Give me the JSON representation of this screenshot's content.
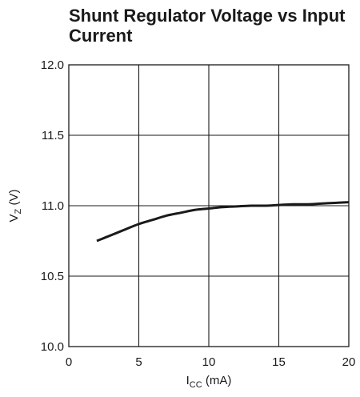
{
  "chart_data": {
    "type": "line",
    "title": "Shunt Regulator Voltage vs Input Current",
    "xlabel": {
      "main": "I",
      "sub": "CC",
      "unit": " (mA)"
    },
    "ylabel": {
      "main": "V",
      "sub": "Z",
      "unit": " (V)"
    },
    "xlim": [
      0,
      20
    ],
    "ylim": [
      10.0,
      12.0
    ],
    "xticks": [
      0,
      5,
      10,
      15,
      20
    ],
    "yticks": [
      10.0,
      10.5,
      11.0,
      11.5,
      12.0
    ],
    "xtick_labels": [
      "0",
      "5",
      "10",
      "15",
      "20"
    ],
    "ytick_labels": [
      "10.0",
      "10.5",
      "11.0",
      "11.5",
      "12.0"
    ],
    "grid": true,
    "series": [
      {
        "x": [
          2,
          3,
          4,
          5,
          6,
          7,
          8,
          9,
          10,
          11,
          12,
          13,
          14,
          15,
          16,
          17,
          18,
          19,
          20
        ],
        "y": [
          10.75,
          10.79,
          10.83,
          10.87,
          10.9,
          10.93,
          10.95,
          10.97,
          10.98,
          10.99,
          10.995,
          11.0,
          11.0,
          11.005,
          11.01,
          11.01,
          11.015,
          11.02,
          11.025
        ]
      }
    ],
    "line_color": "#1a1a1a"
  }
}
